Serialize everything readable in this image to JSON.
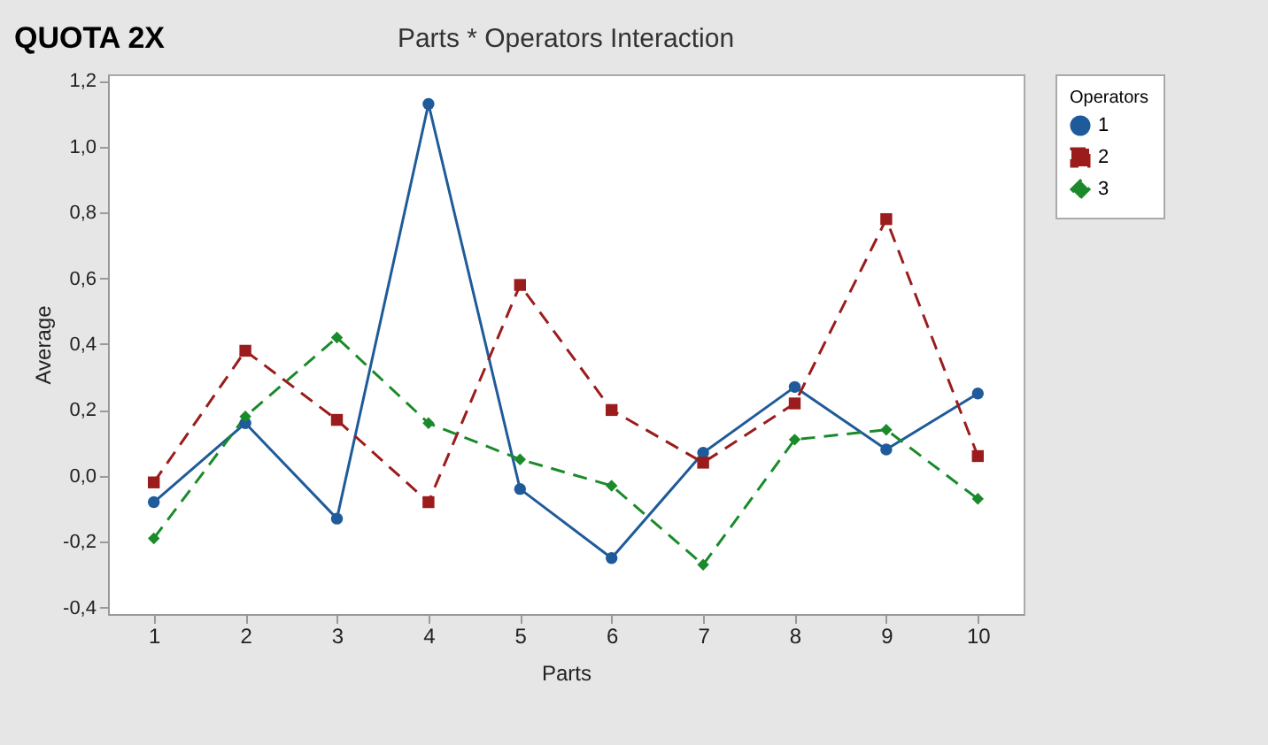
{
  "chart_data": {
    "type": "line",
    "title": "Parts * Operators Interaction",
    "xlabel": "Parts",
    "ylabel": "Average",
    "legend_title": "Operators",
    "annotations": [
      "QUOTA 2X"
    ],
    "categories": [
      "1",
      "2",
      "3",
      "4",
      "5",
      "6",
      "7",
      "8",
      "9",
      "10"
    ],
    "series": [
      {
        "name": "1",
        "color": "#1f5b9a",
        "marker": "circle",
        "line_style": "solid",
        "values": [
          -0.08,
          0.16,
          -0.13,
          1.13,
          -0.04,
          -0.25,
          0.07,
          0.27,
          0.08,
          0.25
        ]
      },
      {
        "name": "2",
        "color": "#9b1c1c",
        "marker": "square",
        "line_style": "dashed",
        "values": [
          -0.02,
          0.38,
          0.17,
          -0.08,
          0.58,
          0.2,
          0.04,
          0.22,
          0.78,
          0.06
        ]
      },
      {
        "name": "3",
        "color": "#1a8a2a",
        "marker": "diamond",
        "line_style": "dashed",
        "values": [
          -0.19,
          0.18,
          0.42,
          0.16,
          0.05,
          -0.03,
          -0.27,
          0.11,
          0.14,
          -0.07
        ]
      }
    ],
    "ylim": [
      -0.42,
      1.22
    ],
    "yticks": [
      {
        "value": -0.4,
        "label": "-0,4"
      },
      {
        "value": -0.2,
        "label": "-0,2"
      },
      {
        "value": 0,
        "label": "0,0"
      },
      {
        "value": 0.2,
        "label": "0,2"
      },
      {
        "value": 0.4,
        "label": "0,4"
      },
      {
        "value": 0.6,
        "label": "0,6"
      },
      {
        "value": 0.8,
        "label": "0,8"
      },
      {
        "value": 1.0,
        "label": "1,0"
      },
      {
        "value": 1.2,
        "label": "1,2"
      }
    ],
    "grid": false,
    "legend": "top right"
  }
}
